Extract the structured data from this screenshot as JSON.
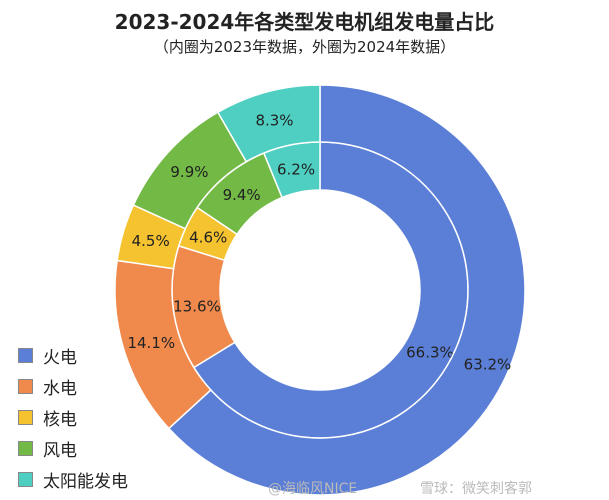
{
  "chart_data": {
    "type": "pie",
    "title": "2023-2024年各类型发电机组发电量占比",
    "subtitle": "（内圈为2023年数据，外圈为2024年数据）",
    "categories": [
      "火电",
      "水电",
      "核电",
      "风电",
      "太阳能发电"
    ],
    "colors": [
      "#5b7fd6",
      "#ef8a4c",
      "#f5c230",
      "#72b945",
      "#4fcfc2"
    ],
    "series": [
      {
        "name": "2023",
        "ring": "inner",
        "values": [
          66.3,
          13.6,
          4.6,
          9.4,
          6.2
        ],
        "labels": [
          "66.3%",
          "13.6%",
          "4.6%",
          "9.4%",
          "6.2%"
        ]
      },
      {
        "name": "2024",
        "ring": "outer",
        "values": [
          63.2,
          14.1,
          4.5,
          9.9,
          8.3
        ],
        "labels": [
          "63.2%",
          "14.1%",
          "4.5%",
          "9.9%",
          "8.3%"
        ]
      }
    ],
    "legend_position": "bottom-left"
  },
  "watermarks": [
    "@海临风NICE",
    "雪球：微笑刺客郭"
  ]
}
